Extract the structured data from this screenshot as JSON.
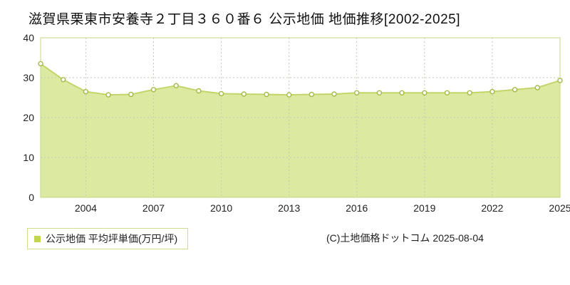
{
  "title": "滋賀県栗東市安養寺２丁目３６０番６ 公示地価 地価推移[2002-2025]",
  "legend": {
    "label": "公示地価 平均坪単価(万円/坪)"
  },
  "copyright": "(C)土地価格ドットコム 2025-08-04",
  "chart_data": {
    "type": "area",
    "title": "滋賀県栗東市安養寺２丁目３６０番６ 公示地価 地価推移[2002-2025]",
    "xlabel": "",
    "ylabel": "平均坪単価(万円/坪)",
    "x": [
      2002,
      2003,
      2004,
      2005,
      2006,
      2007,
      2008,
      2009,
      2010,
      2011,
      2012,
      2013,
      2014,
      2015,
      2016,
      2017,
      2018,
      2019,
      2020,
      2021,
      2022,
      2023,
      2024,
      2025
    ],
    "values": [
      33.5,
      29.5,
      26.5,
      25.7,
      25.8,
      27.0,
      28.0,
      26.7,
      26.0,
      25.9,
      25.8,
      25.7,
      25.8,
      25.9,
      26.2,
      26.2,
      26.2,
      26.2,
      26.2,
      26.2,
      26.5,
      27.0,
      27.5,
      29.3
    ],
    "ylim": [
      0,
      40
    ],
    "yticks": [
      0,
      10,
      20,
      30,
      40
    ],
    "xticks": [
      2004,
      2007,
      2010,
      2013,
      2016,
      2019,
      2022,
      2025
    ],
    "grid": "dotted",
    "legend_position": "bottom-left",
    "colors": {
      "area_fill": "#dce9a0",
      "line": "#c2d56a",
      "marker_fill": "#ffffff",
      "marker_stroke": "#a4ba48",
      "border": "#c6d584",
      "grid": "#c6c6bb",
      "tick_text": "#222222"
    }
  }
}
